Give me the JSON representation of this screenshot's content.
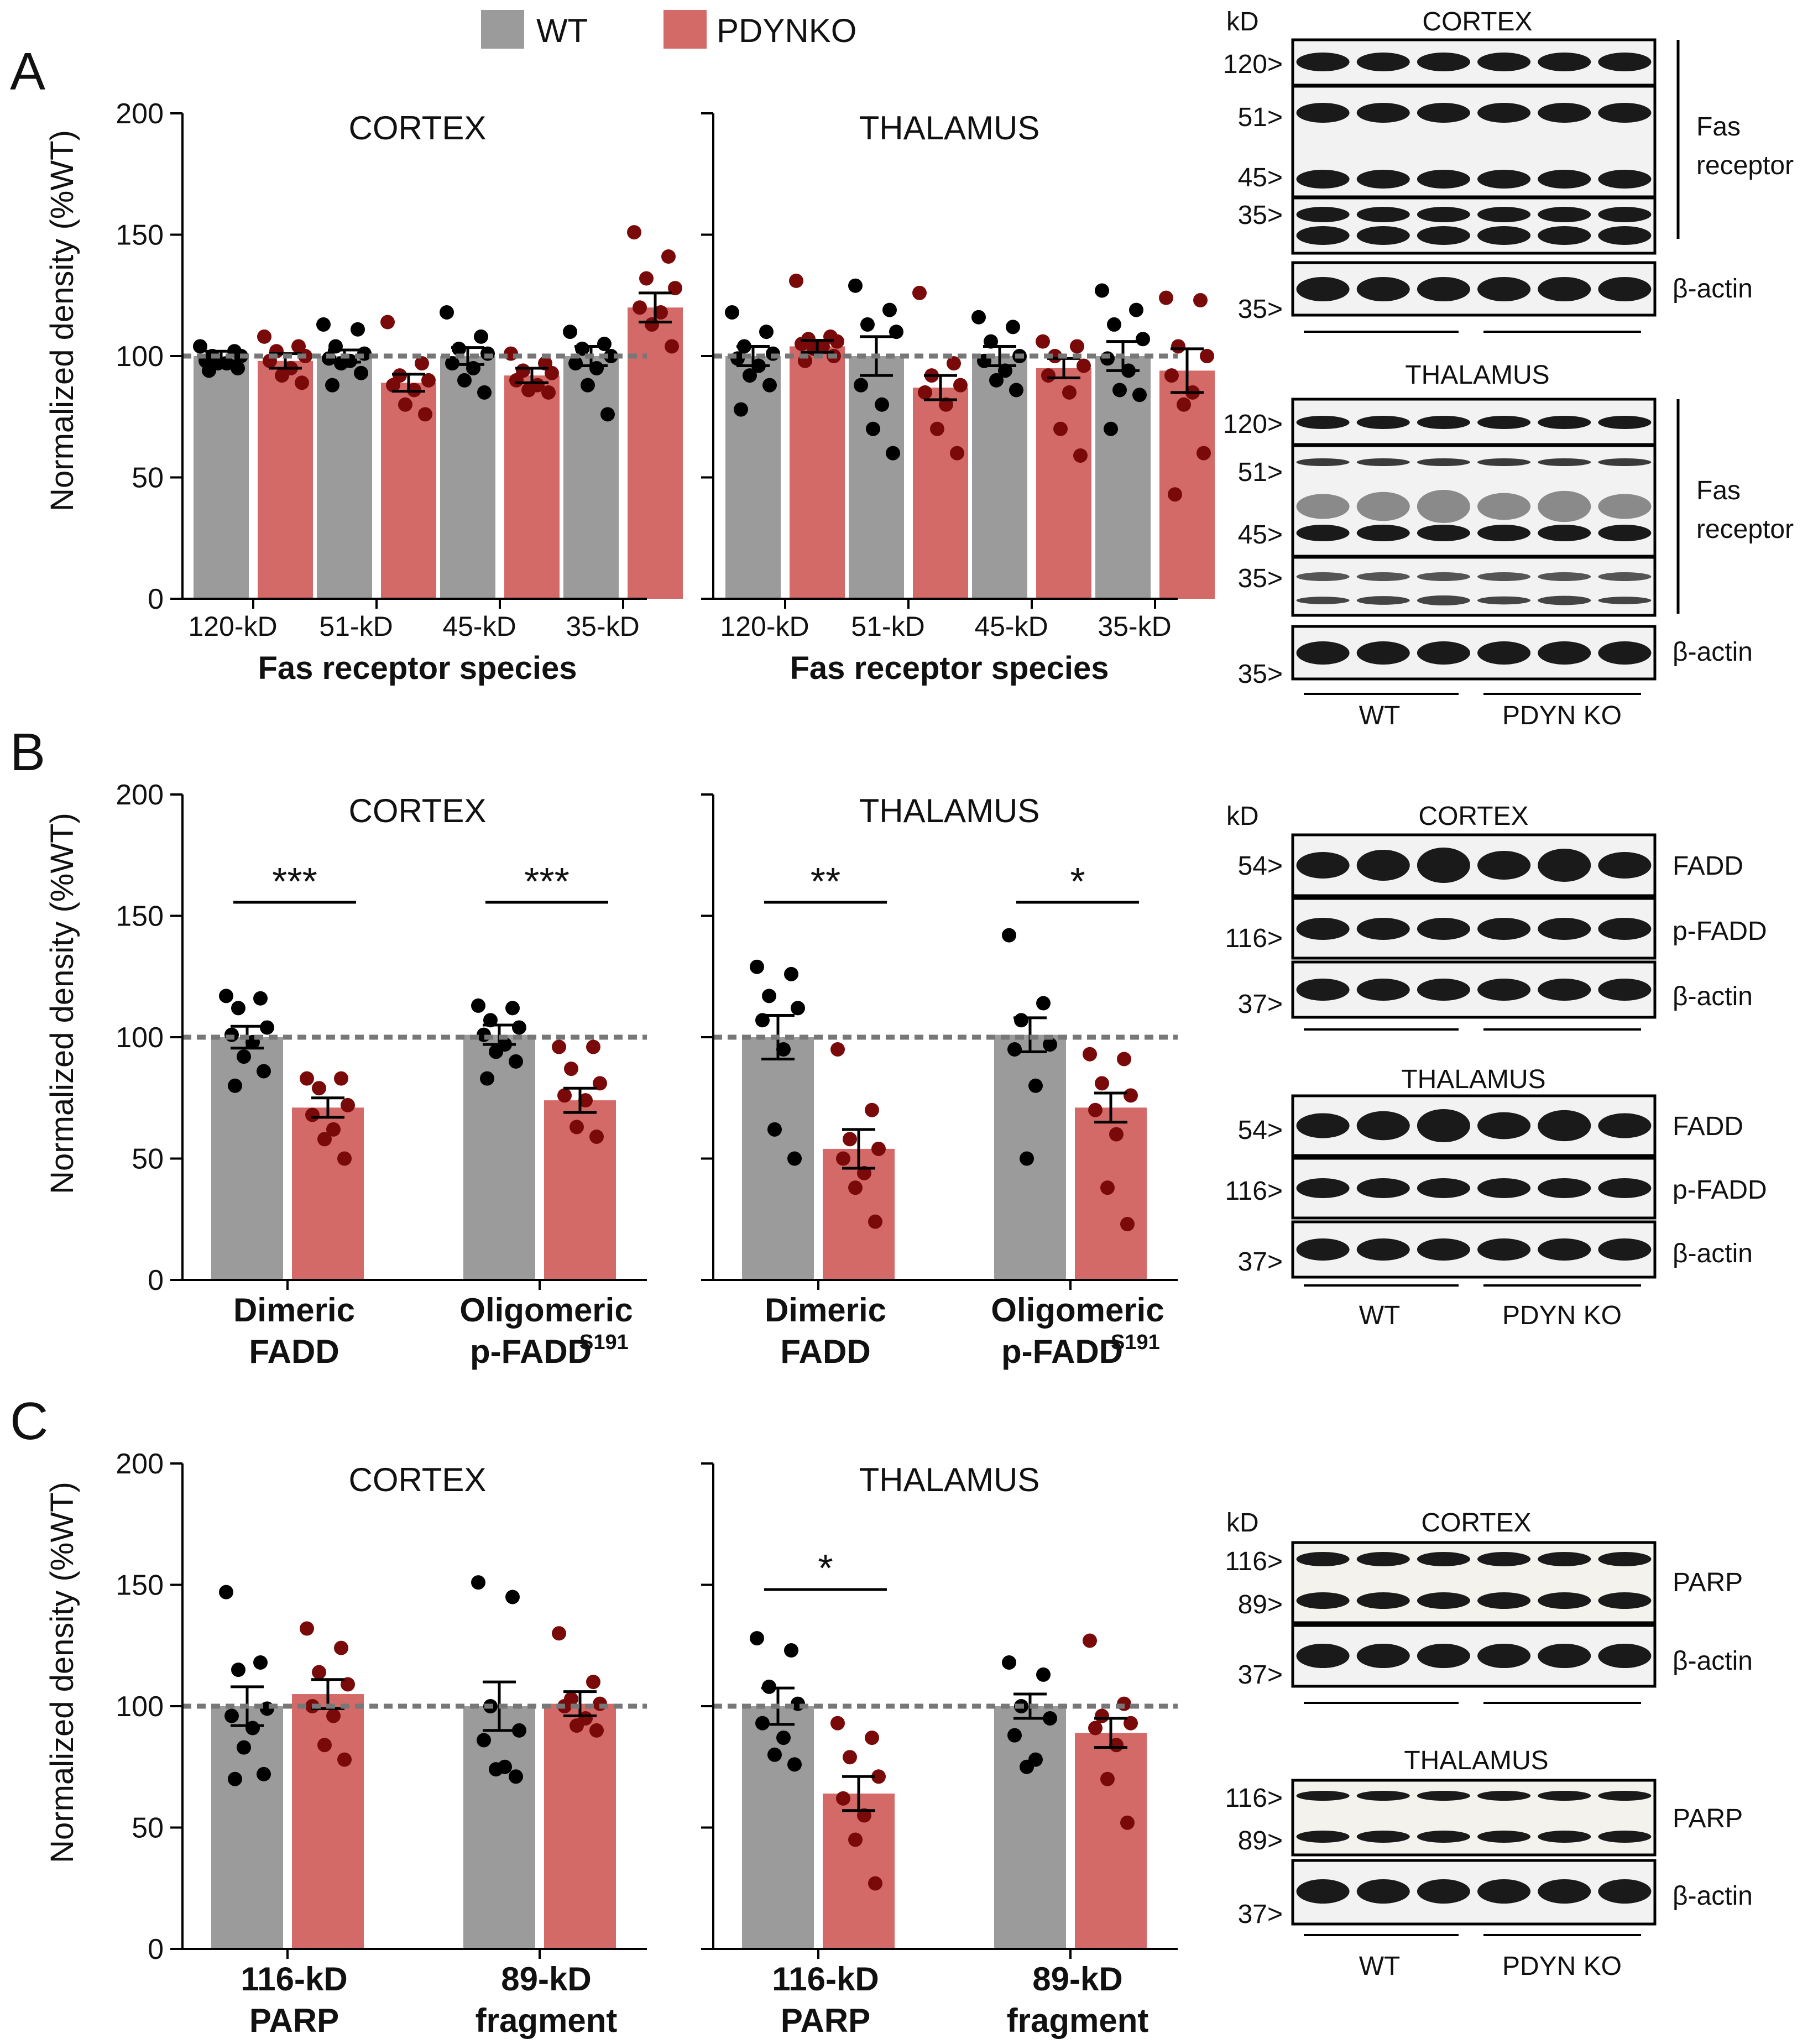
{
  "legend": {
    "wt_label": "WT",
    "ko_label": "PDYNKO"
  },
  "colors": {
    "wt_bar": "#9b9b9b",
    "ko_bar": "#d46a68",
    "wt_dot": "#000000",
    "ko_dot": "#7a0a0a",
    "reference_line": "#777777"
  },
  "panels": {
    "A": "A",
    "B": "B",
    "C": "C"
  },
  "axis": {
    "ylabel": "Normalized density (%WT)",
    "yticks": [
      "0",
      "50",
      "100",
      "150",
      "200"
    ],
    "xlabel_fas": "Fas receptor species"
  },
  "region": {
    "cortex": "CORTEX",
    "thalamus": "THALAMUS"
  },
  "groups": {
    "fas": [
      "120-kD",
      "51-kD",
      "45-kD",
      "35-kD"
    ],
    "fadd_line1": [
      "Dimeric",
      "Oligomeric"
    ],
    "fadd_line2": [
      "FADD",
      "p-FADD"
    ],
    "fadd_sup": "S191",
    "parp_line1": [
      "116-kD",
      "89-kD"
    ],
    "parp_line2": [
      "PARP",
      "fragment"
    ]
  },
  "sig": {
    "B_cortex": [
      "***",
      "***"
    ],
    "B_thalamus": [
      "**",
      "*"
    ],
    "C_thalamus": [
      "*"
    ]
  },
  "chart_data": [
    {
      "type": "bar",
      "panel": "A",
      "region": "CORTEX",
      "categories": [
        "120-kD",
        "51-kD",
        "45-kD",
        "35-kD"
      ],
      "xlabel": "Fas receptor species",
      "ylabel": "Normalized density (%WT)",
      "ylim": [
        0,
        200
      ],
      "reference_line": 100,
      "series": [
        {
          "name": "WT",
          "values": [
            100,
            100,
            100,
            100
          ],
          "sem": [
            2,
            2.5,
            3.5,
            4
          ],
          "points": [
            [
              104,
              102,
              100,
              100,
              98,
              97,
              97,
              95,
              94
            ],
            [
              113,
              111,
              104,
              101,
              99,
              98,
              97,
              93,
              88
            ],
            [
              118,
              108,
              103,
              101,
              97,
              95,
              90,
              85
            ],
            [
              110,
              105,
              103,
              100,
              97,
              95,
              88,
              76
            ]
          ]
        },
        {
          "name": "PDYNKO",
          "values": [
            98,
            89,
            92,
            120
          ],
          "sem": [
            3,
            3.5,
            3,
            6
          ],
          "points": [
            [
              108,
              104,
              102,
              100,
              98,
              95,
              92,
              89
            ],
            [
              114,
              97,
              92,
              90,
              88,
              86,
              80,
              76
            ],
            [
              101,
              97,
              94,
              93,
              90,
              88,
              86,
              85
            ],
            [
              151,
              141,
              132,
              128,
              120,
              118,
              113,
              104
            ]
          ]
        }
      ]
    },
    {
      "type": "bar",
      "panel": "A",
      "region": "THALAMUS",
      "categories": [
        "120-kD",
        "51-kD",
        "45-kD",
        "35-kD"
      ],
      "xlabel": "Fas receptor species",
      "ylabel": "Normalized density (%WT)",
      "ylim": [
        0,
        200
      ],
      "reference_line": 100,
      "series": [
        {
          "name": "WT",
          "values": [
            100,
            100,
            100,
            100
          ],
          "sem": [
            4,
            8,
            4,
            6
          ],
          "points": [
            [
              118,
              110,
              104,
              101,
              99,
              96,
              92,
              88,
              78
            ],
            [
              129,
              119,
              113,
              110,
              88,
              80,
              70,
              60
            ],
            [
              116,
              112,
              106,
              100,
              98,
              94,
              90,
              86
            ],
            [
              127,
              119,
              113,
              107,
              99,
              94,
              86,
              84,
              70
            ]
          ]
        },
        {
          "name": "PDYNKO",
          "values": [
            104,
            87,
            95,
            94
          ],
          "sem": [
            2.5,
            5,
            4,
            9
          ],
          "points": [
            [
              131,
              108,
              107,
              106,
              105,
              104,
              103,
              100,
              98
            ],
            [
              126,
              97,
              92,
              88,
              85,
              80,
              70,
              60
            ],
            [
              106,
              104,
              100,
              96,
              92,
              85,
              70,
              59
            ],
            [
              124,
              123,
              104,
              100,
              92,
              85,
              80,
              60,
              43
            ]
          ]
        }
      ]
    },
    {
      "type": "bar",
      "panel": "B",
      "region": "CORTEX",
      "categories": [
        "Dimeric FADD",
        "Oligomeric p-FADD S191"
      ],
      "ylabel": "Normalized density (%WT)",
      "ylim": [
        0,
        200
      ],
      "reference_line": 100,
      "series": [
        {
          "name": "WT",
          "values": [
            100,
            101
          ],
          "sem": [
            4.5,
            4
          ],
          "points": [
            [
              117,
              116,
              112,
              104,
              101,
              98,
              92,
              86,
              80
            ],
            [
              113,
              112,
              107,
              104,
              101,
              97,
              94,
              90,
              83
            ]
          ]
        },
        {
          "name": "PDYNKO",
          "values": [
            71,
            74
          ],
          "sem": [
            4,
            5
          ],
          "points": [
            [
              83,
              83,
              79,
              72,
              68,
              62,
              58,
              50
            ],
            [
              96,
              96,
              87,
              81,
              76,
              74,
              63,
              59
            ]
          ]
        }
      ]
    },
    {
      "type": "bar",
      "panel": "B",
      "region": "THALAMUS",
      "categories": [
        "Dimeric FADD",
        "Oligomeric p-FADD S191"
      ],
      "ylabel": "Normalized density (%WT)",
      "ylim": [
        0,
        200
      ],
      "reference_line": 100,
      "series": [
        {
          "name": "WT",
          "values": [
            100,
            101
          ],
          "sem": [
            9,
            7
          ],
          "points": [
            [
              129,
              126,
              117,
              112,
              107,
              95,
              62,
              50
            ],
            [
              142,
              114,
              107,
              97,
              95,
              80,
              50
            ]
          ]
        },
        {
          "name": "PDYNKO",
          "values": [
            54,
            71
          ],
          "sem": [
            8,
            6
          ],
          "points": [
            [
              95,
              70,
              58,
              54,
              50,
              44,
              38,
              24
            ],
            [
              93,
              91,
              81,
              76,
              70,
              60,
              38,
              23
            ]
          ]
        }
      ]
    },
    {
      "type": "bar",
      "panel": "C",
      "region": "CORTEX",
      "categories": [
        "116-kD PARP",
        "89-kD fragment"
      ],
      "ylabel": "Normalized density (%WT)",
      "ylim": [
        0,
        200
      ],
      "reference_line": 100,
      "series": [
        {
          "name": "WT",
          "values": [
            100,
            100
          ],
          "sem": [
            8,
            10
          ],
          "points": [
            [
              147,
              118,
              115,
              99,
              96,
              91,
              83,
              72,
              70
            ],
            [
              151,
              145,
              100,
              90,
              86,
              75,
              74,
              71
            ]
          ]
        },
        {
          "name": "PDYNKO",
          "values": [
            105,
            101
          ],
          "sem": [
            6,
            5
          ],
          "points": [
            [
              132,
              124,
              114,
              109,
              100,
              96,
              84,
              78
            ],
            [
              130,
              110,
              103,
              101,
              100,
              95,
              92,
              90
            ]
          ]
        }
      ]
    },
    {
      "type": "bar",
      "panel": "C",
      "region": "THALAMUS",
      "categories": [
        "116-kD PARP",
        "89-kD fragment"
      ],
      "ylabel": "Normalized density (%WT)",
      "ylim": [
        0,
        200
      ],
      "reference_line": 100,
      "series": [
        {
          "name": "WT",
          "values": [
            100,
            100
          ],
          "sem": [
            7.5,
            5
          ],
          "points": [
            [
              128,
              123,
              108,
              101,
              93,
              87,
              80,
              76
            ],
            [
              118,
              113,
              100,
              95,
              88,
              78,
              75
            ]
          ]
        },
        {
          "name": "PDYNKO",
          "values": [
            64,
            89
          ],
          "sem": [
            7,
            6
          ],
          "points": [
            [
              93,
              87,
              79,
              71,
              62,
              55,
              45,
              27
            ],
            [
              127,
              101,
              96,
              93,
              91,
              84,
              70,
              52
            ]
          ]
        }
      ]
    }
  ],
  "blots": {
    "A": {
      "kd": "kD",
      "cortex_title": "CORTEX",
      "thalamus_title": "THALAMUS",
      "cortex_kd": [
        "120>",
        "51>",
        "45>",
        "35>",
        "35>"
      ],
      "thalamus_kd": [
        "120>",
        "51>",
        "45>",
        "35>",
        "35>"
      ],
      "fas_label_1": "Fas",
      "fas_label_2": "receptor",
      "actin": "β-actin",
      "wt": "WT",
      "ko": "PDYN KO"
    },
    "B": {
      "kd": "kD",
      "cortex_title": "CORTEX",
      "thalamus_title": "THALAMUS",
      "kd_labels": [
        "54>",
        "116>",
        "37>"
      ],
      "labels": [
        "FADD",
        "p-FADD",
        "β-actin"
      ],
      "wt": "WT",
      "ko": "PDYN KO"
    },
    "C": {
      "kd": "kD",
      "cortex_title": "CORTEX",
      "thalamus_title": "THALAMUS",
      "kd_labels": [
        "116>",
        "89>",
        "37>"
      ],
      "labels": [
        "PARP",
        "β-actin"
      ],
      "wt": "WT",
      "ko": "PDYN KO"
    }
  }
}
